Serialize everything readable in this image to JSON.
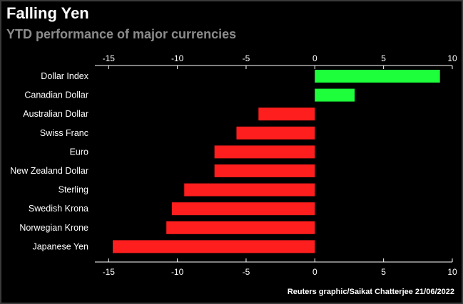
{
  "header": {
    "title": "Falling Yen",
    "subtitle": "YTD performance of major currencies"
  },
  "footer": {
    "source": "Reuters graphic/Saikat Chatterjee 21/06/2022"
  },
  "colors": {
    "positive": "#1eff3c",
    "negative": "#ff1e1e",
    "background": "#000000",
    "text": "#ffffff",
    "subtitle": "#8c8c8c"
  },
  "chart_data": {
    "type": "bar",
    "orientation": "horizontal",
    "title": "Falling Yen",
    "subtitle": "YTD performance of major currencies",
    "xlim": [
      -16,
      10
    ],
    "xticks": [
      -15,
      -10,
      -5,
      0,
      5,
      10
    ],
    "grid": false,
    "categories": [
      "Dollar Index",
      "Canadian Dollar",
      "Australian Dollar",
      "Swiss Franc",
      "Euro",
      "New Zealand Dollar",
      "Sterling",
      "Swedish Krona",
      "Norwegian Krone",
      "Japanese Yen"
    ],
    "values": [
      9.1,
      2.9,
      -4.1,
      -5.7,
      -7.3,
      -7.3,
      -9.5,
      -10.4,
      -10.8,
      -14.7
    ]
  }
}
